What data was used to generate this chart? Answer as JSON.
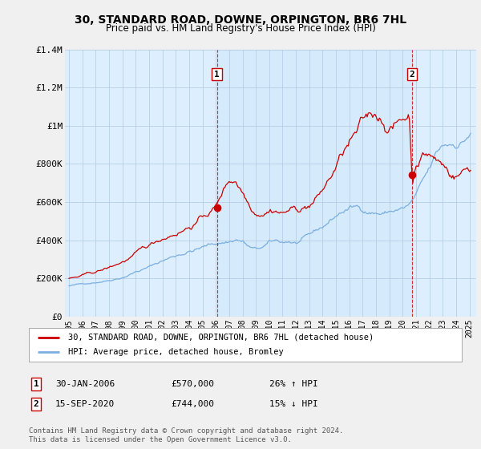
{
  "title": "30, STANDARD ROAD, DOWNE, ORPINGTON, BR6 7HL",
  "subtitle": "Price paid vs. HM Land Registry's House Price Index (HPI)",
  "legend_line1": "30, STANDARD ROAD, DOWNE, ORPINGTON, BR6 7HL (detached house)",
  "legend_line2": "HPI: Average price, detached house, Bromley",
  "annotation1_date": "30-JAN-2006",
  "annotation1_price": "£570,000",
  "annotation1_hpi": "26% ↑ HPI",
  "annotation2_date": "15-SEP-2020",
  "annotation2_price": "£744,000",
  "annotation2_hpi": "15% ↓ HPI",
  "footer": "Contains HM Land Registry data © Crown copyright and database right 2024.\nThis data is licensed under the Open Government Licence v3.0.",
  "line_color_red": "#cc0000",
  "line_color_blue": "#7aafe0",
  "vline_color": "#cc0000",
  "background_color": "#f0f0f0",
  "plot_bg_color": "#ddeeff",
  "ylim": [
    0,
    1400000
  ],
  "yticks": [
    0,
    200000,
    400000,
    600000,
    800000,
    1000000,
    1200000,
    1400000
  ],
  "ytick_labels": [
    "£0",
    "£200K",
    "£400K",
    "£600K",
    "£800K",
    "£1M",
    "£1.2M",
    "£1.4M"
  ],
  "purchase1_x": 2006.08,
  "purchase1_value": 570000,
  "purchase2_x": 2020.71,
  "purchase2_value": 744000,
  "xlim_min": 1994.7,
  "xlim_max": 2025.5
}
